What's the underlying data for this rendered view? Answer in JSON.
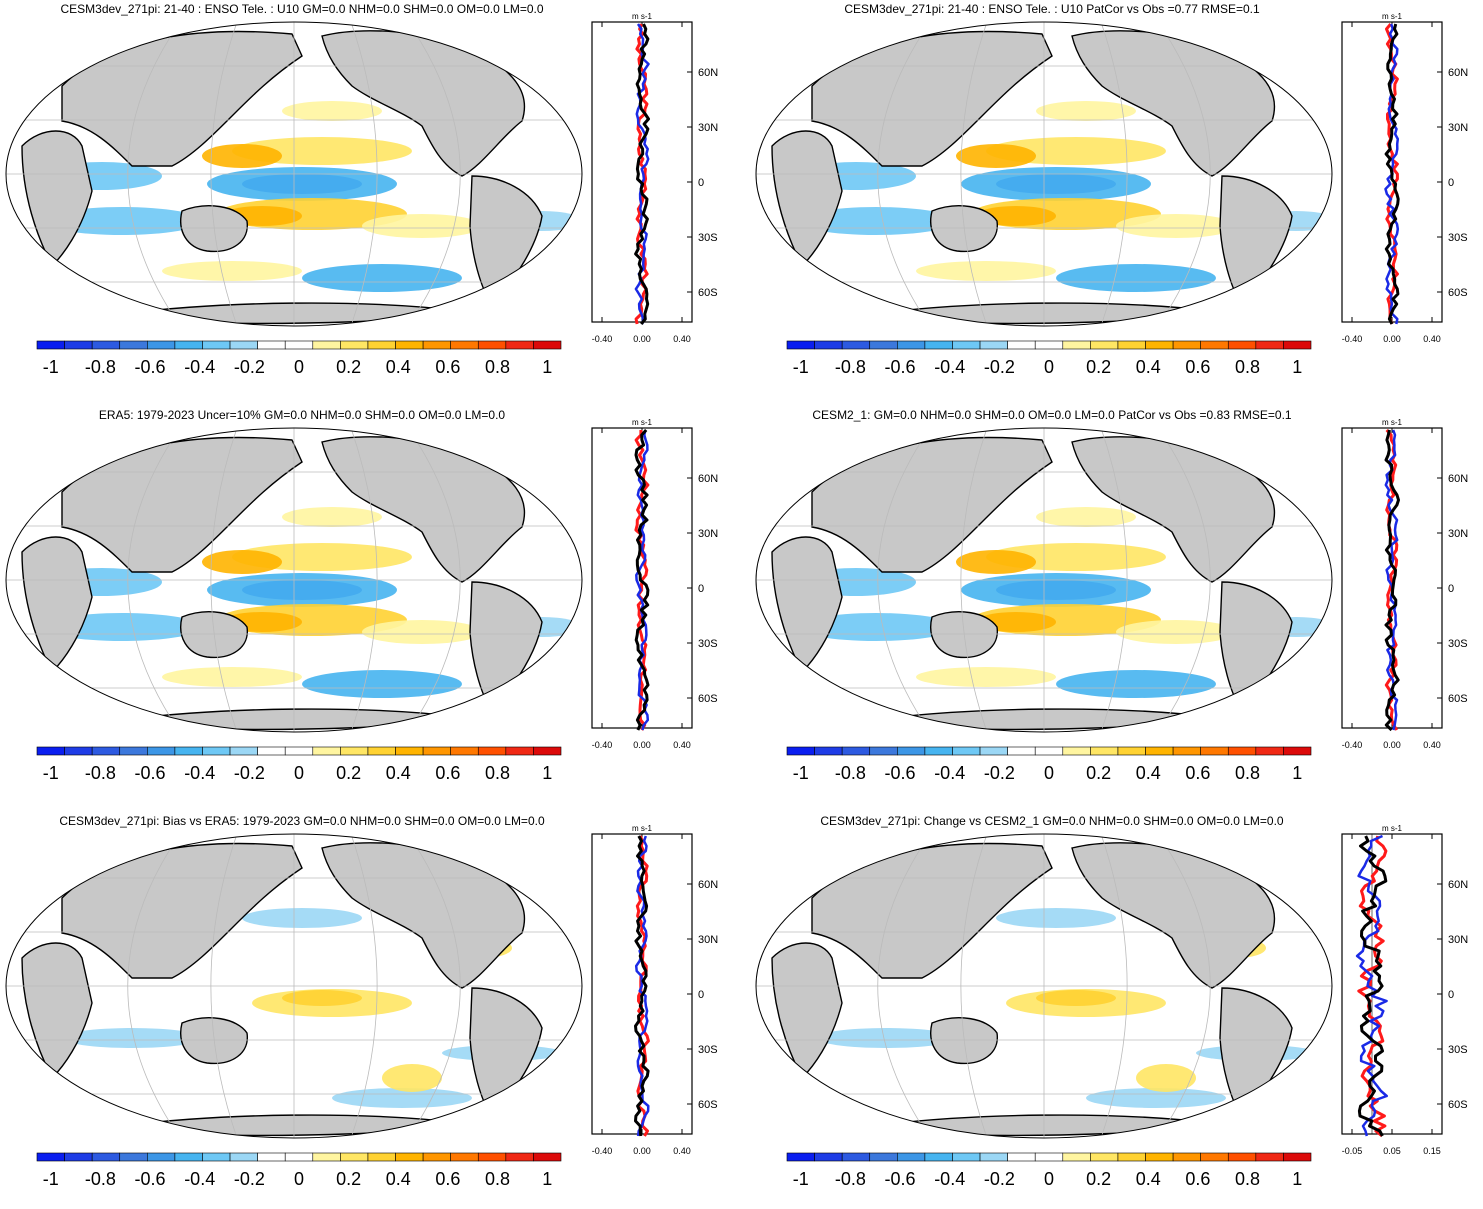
{
  "figure": {
    "colorbar": {
      "tick_labels": [
        "-1",
        "-0.8",
        "-0.6",
        "-0.4",
        "-0.2",
        "0",
        "0.2",
        "0.4",
        "0.6",
        "0.8",
        "1"
      ],
      "colors": [
        "#0a1ef0",
        "#1e3ce6",
        "#2d5ae1",
        "#3c78dc",
        "#3c96e6",
        "#46b4f0",
        "#6ec8f5",
        "#9bd7f5",
        "#ffffff",
        "#ffffff",
        "#fff5a0",
        "#ffe664",
        "#ffd232",
        "#ffb400",
        "#ff9600",
        "#ff7800",
        "#ff5000",
        "#f02814",
        "#dc0a0a"
      ]
    },
    "zonal_units": "m s-1",
    "lat_labels": [
      "60N",
      "30N",
      "0",
      "30S",
      "60S"
    ],
    "panels": [
      {
        "id": "p1",
        "title": "CESM3dev_271pi: 21-40 : ENSO Tele. : U10 GM=0.0 NHM=0.0 SHM=0.0 OM=0.0 LM=0.0",
        "x_ticks": [
          "-0.40",
          "0.00",
          "0.40"
        ]
      },
      {
        "id": "p2",
        "title": "CESM3dev_271pi: 21-40 : ENSO Tele. : U10 PatCor vs Obs =0.77 RMSE=0.1",
        "x_ticks": [
          "-0.40",
          "0.00",
          "0.40"
        ]
      },
      {
        "id": "p3",
        "title": "ERA5: 1979-2023 Uncer=10% GM=0.0 NHM=0.0 SHM=0.0 OM=0.0 LM=0.0",
        "x_ticks": [
          "-0.40",
          "0.00",
          "0.40"
        ]
      },
      {
        "id": "p4",
        "title": "CESM2_1: GM=0.0 NHM=0.0 SHM=0.0 OM=0.0 LM=0.0 PatCor vs Obs =0.83 RMSE=0.1",
        "x_ticks": [
          "-0.40",
          "0.00",
          "0.40"
        ]
      },
      {
        "id": "p5",
        "title": "CESM3dev_271pi: Bias vs ERA5: 1979-2023 GM=0.0 NHM=0.0 SHM=0.0 OM=0.0 LM=0.0",
        "x_ticks": [
          "-0.40",
          "0.00",
          "0.40"
        ]
      },
      {
        "id": "p6",
        "title": "CESM3dev_271pi: Change vs CESM2_1 GM=0.0 NHM=0.0 SHM=0.0 OM=0.0 LM=0.0",
        "x_ticks": [
          "-0.05",
          "0.05",
          "0.15"
        ]
      }
    ]
  }
}
